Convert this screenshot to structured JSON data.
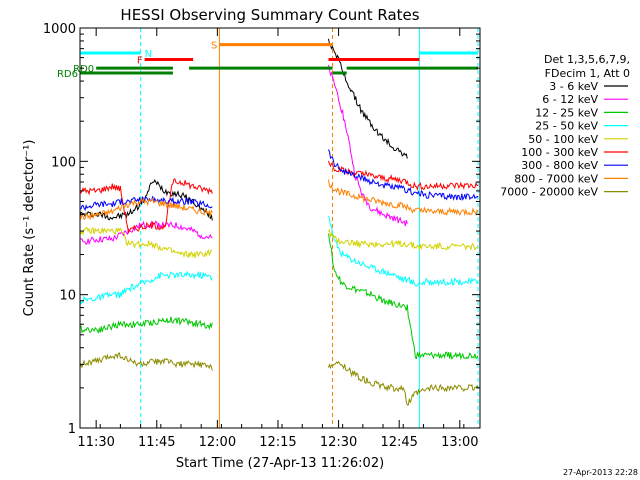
{
  "chart_data": {
    "type": "line",
    "title": "HESSI Observing Summary Count Rates",
    "xlabel": "Start Time (27-Apr-13 11:26:02)",
    "ylabel": "Count Rate (s⁻¹ detector⁻¹)",
    "x_unit": "minutes after 11:26:02 UT",
    "xlim": [
      0,
      99
    ],
    "ylim": [
      1,
      1000
    ],
    "y_scale": "log",
    "x_ticks": [
      {
        "t": 4,
        "label": "11:30"
      },
      {
        "t": 19,
        "label": "11:45"
      },
      {
        "t": 34,
        "label": "12:00"
      },
      {
        "t": 49,
        "label": "12:15"
      },
      {
        "t": 64,
        "label": "12:30"
      },
      {
        "t": 79,
        "label": "12:45"
      },
      {
        "t": 94,
        "label": "13:00"
      }
    ],
    "y_ticks": [
      {
        "v": 1,
        "label": "1"
      },
      {
        "v": 10,
        "label": "10"
      },
      {
        "v": 100,
        "label": "100"
      },
      {
        "v": 1000,
        "label": "1000"
      }
    ],
    "legend": {
      "placement": "right",
      "header1": "Det 1,3,5,6,7,9,",
      "header2": "FDecim 1, Att 0"
    },
    "series": [
      {
        "name": "3 - 6 keV",
        "color": "#000000",
        "points": [
          [
            0,
            40
          ],
          [
            5,
            40
          ],
          [
            8,
            38
          ],
          [
            12,
            40
          ],
          [
            15,
            48
          ],
          [
            17,
            60
          ],
          [
            18,
            72
          ],
          [
            19,
            68
          ],
          [
            21,
            60
          ],
          [
            25,
            56
          ],
          [
            28,
            50
          ],
          [
            30,
            44
          ],
          [
            32,
            40
          ],
          [
            33,
            36
          ],
          [
            61.5,
            800
          ],
          [
            63,
            680
          ],
          [
            64,
            580
          ],
          [
            65,
            470
          ],
          [
            66,
            400
          ],
          [
            68,
            300
          ],
          [
            70,
            230
          ],
          [
            72,
            190
          ],
          [
            74,
            160
          ],
          [
            76,
            140
          ],
          [
            78,
            125
          ],
          [
            80,
            115
          ],
          [
            81,
            105
          ]
        ]
      },
      {
        "name": "6 - 12 keV",
        "color": "#ff00ff",
        "points": [
          [
            0,
            25
          ],
          [
            5,
            26
          ],
          [
            8,
            26
          ],
          [
            10,
            28
          ],
          [
            12,
            30
          ],
          [
            15,
            33
          ],
          [
            18,
            34
          ],
          [
            21,
            33
          ],
          [
            24,
            33
          ],
          [
            28,
            30
          ],
          [
            30,
            28
          ],
          [
            32,
            27
          ],
          [
            33,
            26
          ],
          [
            61.5,
            500
          ],
          [
            63,
            380
          ],
          [
            64,
            300
          ],
          [
            65,
            230
          ],
          [
            66,
            170
          ],
          [
            67,
            120
          ],
          [
            68,
            80
          ],
          [
            70,
            55
          ],
          [
            72,
            45
          ],
          [
            75,
            40
          ],
          [
            77,
            38
          ],
          [
            80,
            35
          ],
          [
            81,
            34
          ]
        ]
      },
      {
        "name": "12 - 25 keV",
        "color": "#00c800",
        "points": [
          [
            0,
            5.5
          ],
          [
            5,
            5.5
          ],
          [
            8,
            5.8
          ],
          [
            10,
            6
          ],
          [
            15,
            6
          ],
          [
            18,
            6.2
          ],
          [
            22,
            6.5
          ],
          [
            26,
            6.3
          ],
          [
            30,
            6
          ],
          [
            33,
            5.8
          ],
          [
            61.5,
            30
          ],
          [
            63,
            15
          ],
          [
            65,
            12
          ],
          [
            68,
            11
          ],
          [
            72,
            10
          ],
          [
            75,
            9
          ],
          [
            78,
            8.5
          ],
          [
            81,
            8
          ],
          [
            83,
            3.5
          ],
          [
            89,
            3.5
          ],
          [
            93,
            3.5
          ],
          [
            98.5,
            3.5
          ]
        ]
      },
      {
        "name": "25 - 50 keV",
        "color": "#00ffff",
        "points": [
          [
            0,
            9
          ],
          [
            5,
            9.5
          ],
          [
            8,
            10
          ],
          [
            10,
            10
          ],
          [
            12,
            11
          ],
          [
            15,
            12
          ],
          [
            20,
            14
          ],
          [
            25,
            14
          ],
          [
            30,
            14
          ],
          [
            33,
            13.5
          ],
          [
            61.5,
            40
          ],
          [
            63,
            25
          ],
          [
            65,
            20
          ],
          [
            68,
            18
          ],
          [
            70,
            17
          ],
          [
            72,
            16
          ],
          [
            75,
            15
          ],
          [
            78,
            14
          ],
          [
            80,
            13
          ],
          [
            81,
            13
          ],
          [
            83,
            12
          ],
          [
            86,
            12.5
          ],
          [
            90,
            12.5
          ],
          [
            94,
            12.5
          ],
          [
            98.5,
            12.5
          ]
        ]
      },
      {
        "name": "50 - 100 keV",
        "color": "#d2d200",
        "points": [
          [
            0,
            30
          ],
          [
            5,
            30
          ],
          [
            8,
            30
          ],
          [
            10,
            30
          ],
          [
            12,
            24
          ],
          [
            15,
            24
          ],
          [
            18,
            24
          ],
          [
            21,
            22
          ],
          [
            25,
            20
          ],
          [
            30,
            20
          ],
          [
            33,
            21
          ],
          [
            61.5,
            30
          ],
          [
            63,
            26
          ],
          [
            65,
            25
          ],
          [
            70,
            24
          ],
          [
            75,
            24
          ],
          [
            80,
            24
          ],
          [
            81,
            24
          ],
          [
            83,
            23
          ],
          [
            86,
            23
          ],
          [
            90,
            23
          ],
          [
            94,
            23
          ],
          [
            98.5,
            23
          ]
        ]
      },
      {
        "name": "100 - 300 keV",
        "color": "#ff0000",
        "points": [
          [
            0,
            60
          ],
          [
            4,
            60
          ],
          [
            6,
            62
          ],
          [
            8,
            65
          ],
          [
            10,
            62
          ],
          [
            12,
            30
          ],
          [
            15,
            32
          ],
          [
            18,
            33
          ],
          [
            21,
            32
          ],
          [
            23,
            70
          ],
          [
            25,
            70
          ],
          [
            28,
            65
          ],
          [
            30,
            62
          ],
          [
            33,
            60
          ],
          [
            61.5,
            100
          ],
          [
            63,
            90
          ],
          [
            65,
            85
          ],
          [
            70,
            80
          ],
          [
            75,
            75
          ],
          [
            80,
            72
          ],
          [
            81,
            70
          ],
          [
            83,
            65
          ],
          [
            86,
            65
          ],
          [
            90,
            66
          ],
          [
            94,
            66
          ],
          [
            98.5,
            66
          ]
        ]
      },
      {
        "name": "300 - 800 keV",
        "color": "#0000ff",
        "points": [
          [
            0,
            45
          ],
          [
            5,
            48
          ],
          [
            8,
            48
          ],
          [
            10,
            50
          ],
          [
            12,
            50
          ],
          [
            15,
            52
          ],
          [
            18,
            52
          ],
          [
            21,
            50
          ],
          [
            24,
            50
          ],
          [
            27,
            50
          ],
          [
            30,
            48
          ],
          [
            33,
            46
          ],
          [
            61.5,
            120
          ],
          [
            63,
            95
          ],
          [
            65,
            85
          ],
          [
            68,
            78
          ],
          [
            71,
            72
          ],
          [
            74,
            68
          ],
          [
            77,
            64
          ],
          [
            80,
            62
          ],
          [
            81,
            60
          ],
          [
            83,
            58
          ],
          [
            86,
            56
          ],
          [
            90,
            55
          ],
          [
            94,
            54
          ],
          [
            98.5,
            54
          ]
        ]
      },
      {
        "name": "800 - 7000 keV",
        "color": "#ff8000",
        "points": [
          [
            0,
            38
          ],
          [
            5,
            40
          ],
          [
            8,
            42
          ],
          [
            10,
            45
          ],
          [
            12,
            48
          ],
          [
            15,
            50
          ],
          [
            18,
            50
          ],
          [
            21,
            48
          ],
          [
            24,
            46
          ],
          [
            27,
            44
          ],
          [
            30,
            42
          ],
          [
            33,
            40
          ],
          [
            61.5,
            70
          ],
          [
            63,
            62
          ],
          [
            65,
            58
          ],
          [
            68,
            55
          ],
          [
            71,
            52
          ],
          [
            74,
            50
          ],
          [
            77,
            48
          ],
          [
            80,
            46
          ],
          [
            81,
            45
          ],
          [
            83,
            43
          ],
          [
            86,
            42
          ],
          [
            90,
            42
          ],
          [
            94,
            42
          ],
          [
            98.5,
            42
          ]
        ]
      },
      {
        "name": "7000 - 20000 keV",
        "color": "#8c8c00",
        "points": [
          [
            0,
            3
          ],
          [
            5,
            3.2
          ],
          [
            8,
            3.5
          ],
          [
            10,
            3.5
          ],
          [
            12,
            3.2
          ],
          [
            15,
            3
          ],
          [
            20,
            3.2
          ],
          [
            25,
            3
          ],
          [
            30,
            3
          ],
          [
            33,
            2.8
          ],
          [
            61.5,
            3
          ],
          [
            65,
            3
          ],
          [
            68,
            2.5
          ],
          [
            72,
            2.2
          ],
          [
            76,
            2
          ],
          [
            80,
            2
          ],
          [
            81,
            1.5
          ],
          [
            83,
            1.8
          ],
          [
            87,
            2
          ],
          [
            90,
            2
          ],
          [
            94,
            2
          ],
          [
            98.5,
            2
          ]
        ]
      }
    ],
    "vertical_lines": [
      {
        "t": 0,
        "color": "#00ffff",
        "style": "solid"
      },
      {
        "t": 15,
        "color": "#00ffff",
        "style": "dash"
      },
      {
        "t": 34.5,
        "color": "#ff8000",
        "style": "solid"
      },
      {
        "t": 62.5,
        "color": "#ff8000",
        "style": "dash"
      },
      {
        "t": 84,
        "color": "#00ffff",
        "style": "solid"
      },
      {
        "t": 98.5,
        "color": "#00ffff",
        "style": "dash"
      }
    ],
    "flag_bars": [
      {
        "label": "N",
        "color": "#00ffff",
        "y": 650,
        "segments": [
          [
            0,
            15
          ],
          [
            84,
            98.5
          ]
        ]
      },
      {
        "label": "F",
        "color": "#ff0000",
        "y": 580,
        "segments": [
          [
            16,
            28
          ],
          [
            61.5,
            84
          ]
        ]
      },
      {
        "label": "RD0",
        "color": "#008000",
        "y": 500,
        "segments": [
          [
            4,
            23
          ],
          [
            27,
            62.5
          ],
          [
            66,
            98.5
          ]
        ]
      },
      {
        "label": "RD6",
        "color": "#008000",
        "y": 460,
        "segments": [
          [
            0,
            23
          ],
          [
            62.5,
            66
          ]
        ]
      },
      {
        "label": "S",
        "color": "#ff8000",
        "y": 750,
        "segments": [
          [
            34.5,
            62.5
          ]
        ]
      }
    ],
    "footer_stamp": "27-Apr-2013 22:28"
  }
}
